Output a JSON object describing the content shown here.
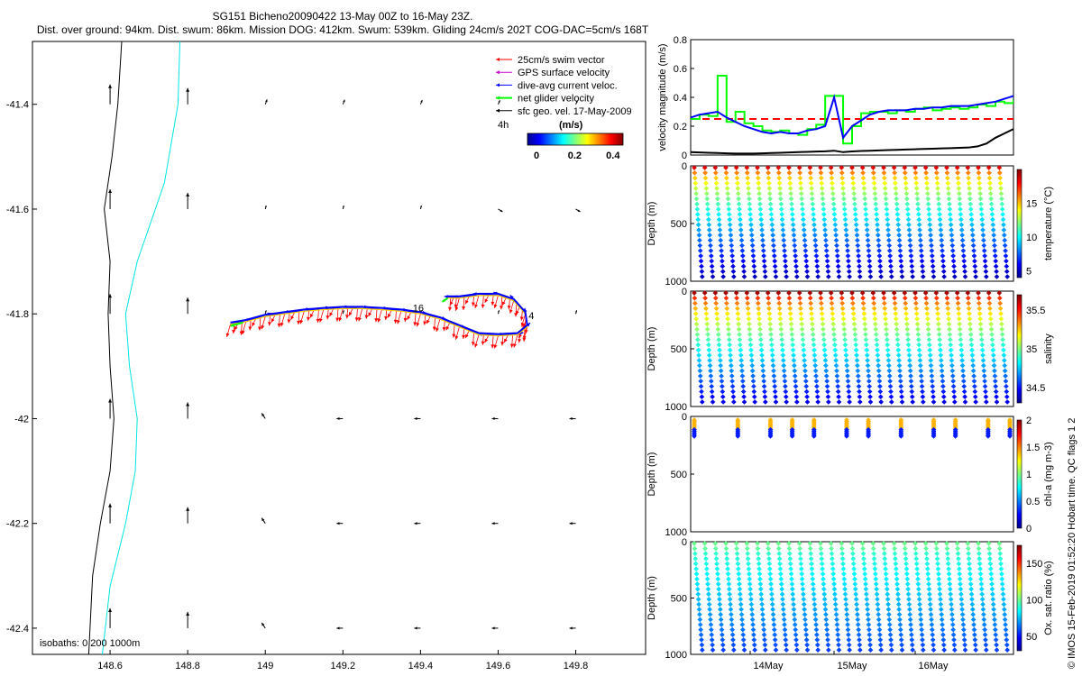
{
  "title": {
    "line1": "SG151 Bicheno20090422 13-May 00Z to 16-May 23Z.",
    "line2": "Dist. over ground: 94km. Dist. swum: 86km. Mission DOG: 412km. Swum: 539km. Gliding 24cm/s 202T COG-DAC=5cm/s 168T"
  },
  "side_note": "© IMOS 15-Feb-2019 01:52:20 Hobart time. QC flags 1  2",
  "colors": {
    "swim": "#ff0000",
    "gps": "#cc00cc",
    "current": "#0000ff",
    "net": "#00ff00",
    "geo": "#000000",
    "isobath0": "#000000",
    "isobath200": "#00e5e5"
  },
  "chart_data": [
    {
      "type": "scatter",
      "name": "map",
      "xlim": [
        148.4,
        149.98
      ],
      "ylim": [
        -42.45,
        -41.28
      ],
      "x_ticks": [
        "148.6",
        "148.8",
        "149",
        "149.2",
        "149.4",
        "149.6",
        "149.8"
      ],
      "y_ticks": [
        "-41.4",
        "-41.6",
        "-41.8",
        "-42",
        "-42.2",
        "-42.4"
      ],
      "legend": [
        {
          "label": "25cm/s swim vector",
          "color": "#ff0000"
        },
        {
          "label": "GPS surface velocity",
          "color": "#cc00cc"
        },
        {
          "label": "dive-avg current veloc.",
          "color": "#0000ff"
        },
        {
          "label": "net glider velocity",
          "color": "#00ff00"
        },
        {
          "label": "sfc geo. vel. 17-May-2009",
          "color": "#000000"
        }
      ],
      "legend_placement": "top-right",
      "colorbar": {
        "label": "(m/s)",
        "ticks": [
          "0",
          "0.2",
          "0.4"
        ],
        "range": [
          0,
          0.5
        ]
      },
      "annotations": [
        "4h",
        "16",
        "4"
      ],
      "isobaths_label": "isobaths: 0   200   1000m",
      "track": [
        [
          148.91,
          -41.82
        ],
        [
          148.95,
          -41.815
        ],
        [
          149.0,
          -41.805
        ],
        [
          149.05,
          -41.8
        ],
        [
          149.1,
          -41.795
        ],
        [
          149.15,
          -41.792
        ],
        [
          149.2,
          -41.79
        ],
        [
          149.25,
          -41.79
        ],
        [
          149.3,
          -41.792
        ],
        [
          149.35,
          -41.795
        ],
        [
          149.4,
          -41.8
        ],
        [
          149.45,
          -41.81
        ],
        [
          149.5,
          -41.825
        ],
        [
          149.55,
          -41.84
        ],
        [
          149.6,
          -41.842
        ],
        [
          149.65,
          -41.84
        ],
        [
          149.675,
          -41.825
        ],
        [
          149.67,
          -41.8
        ],
        [
          149.64,
          -41.775
        ],
        [
          149.6,
          -41.765
        ],
        [
          149.55,
          -41.765
        ],
        [
          149.5,
          -41.77
        ],
        [
          149.47,
          -41.77
        ]
      ]
    },
    {
      "type": "line",
      "name": "velocity",
      "ylabel": "velocity magnitude (m/s)",
      "ylim": [
        0,
        0.8
      ],
      "y_ticks": [
        "0",
        "0.2",
        "0.4",
        "0.6",
        "0.8"
      ],
      "reference_line": 0.25,
      "series": [
        {
          "color": "#00ff00",
          "values": [
            0.25,
            0.28,
            0.27,
            0.55,
            0.23,
            0.3,
            0.22,
            0.2,
            0.17,
            0.16,
            0.17,
            0.15,
            0.14,
            0.18,
            0.21,
            0.41,
            0.41,
            0.08,
            0.2,
            0.29,
            0.3,
            0.3,
            0.29,
            0.31,
            0.3,
            0.32,
            0.33,
            0.31,
            0.32,
            0.33,
            0.32,
            0.33,
            0.35,
            0.34,
            0.37,
            0.36,
            0.38
          ]
        },
        {
          "color": "#0000ff",
          "values": [
            0.26,
            0.28,
            0.29,
            0.3,
            0.26,
            0.23,
            0.2,
            0.18,
            0.16,
            0.15,
            0.16,
            0.15,
            0.15,
            0.17,
            0.18,
            0.2,
            0.4,
            0.12,
            0.2,
            0.24,
            0.28,
            0.3,
            0.31,
            0.31,
            0.31,
            0.32,
            0.32,
            0.33,
            0.33,
            0.34,
            0.34,
            0.34,
            0.35,
            0.36,
            0.37,
            0.39,
            0.41
          ]
        },
        {
          "color": "#000000",
          "values": [
            0.02,
            0.018,
            0.016,
            0.014,
            0.012,
            0.01,
            0.01,
            0.01,
            0.012,
            0.014,
            0.016,
            0.018,
            0.02,
            0.022,
            0.024,
            0.026,
            0.03,
            0.02,
            0.025,
            0.028,
            0.03,
            0.032,
            0.034,
            0.036,
            0.038,
            0.04,
            0.042,
            0.044,
            0.046,
            0.048,
            0.05,
            0.052,
            0.06,
            0.08,
            0.12,
            0.15,
            0.18
          ]
        }
      ]
    },
    {
      "type": "scatter",
      "name": "temperature",
      "ylabel": "Depth (m)",
      "cbar_label": "temperature (°C)",
      "cbar_ticks": [
        "5",
        "10",
        "15"
      ],
      "cbar_range": [
        4,
        20
      ],
      "ylim": [
        1000,
        0
      ],
      "y_ticks": [
        "0",
        "500",
        "1000"
      ],
      "dives": 30,
      "max_depth": 1000
    },
    {
      "type": "scatter",
      "name": "salinity",
      "ylabel": "Depth (m)",
      "cbar_label": "salinity",
      "cbar_ticks": [
        "34.5",
        "35",
        "35.5"
      ],
      "cbar_range": [
        34.3,
        35.7
      ],
      "ylim": [
        1000,
        0
      ],
      "y_ticks": [
        "0",
        "500",
        "1000"
      ],
      "dives": 30,
      "max_depth": 1000
    },
    {
      "type": "scatter",
      "name": "chla",
      "ylabel": "Depth (m)",
      "cbar_label": "chl-a (mg m-3)",
      "cbar_ticks": [
        "0",
        "0.5",
        "1",
        "1.5",
        "2"
      ],
      "cbar_range": [
        0,
        2
      ],
      "ylim": [
        1000,
        0
      ],
      "y_ticks": [
        "0",
        "500",
        "1000"
      ],
      "profiles": [
        0,
        4,
        7,
        9,
        11,
        14,
        16,
        19,
        22,
        24,
        27,
        29
      ]
    },
    {
      "type": "scatter",
      "name": "oxygen",
      "ylabel": "Depth (m)",
      "cbar_label": "Ox. sat. ratio (%)",
      "cbar_ticks": [
        "50",
        "100",
        "150"
      ],
      "cbar_range": [
        30,
        175
      ],
      "ylim": [
        1000,
        0
      ],
      "y_ticks": [
        "0",
        "500",
        "1000"
      ],
      "x_ticks": [
        "14May",
        "15May",
        "16May"
      ],
      "dives": 30,
      "max_depth": 1000
    }
  ]
}
